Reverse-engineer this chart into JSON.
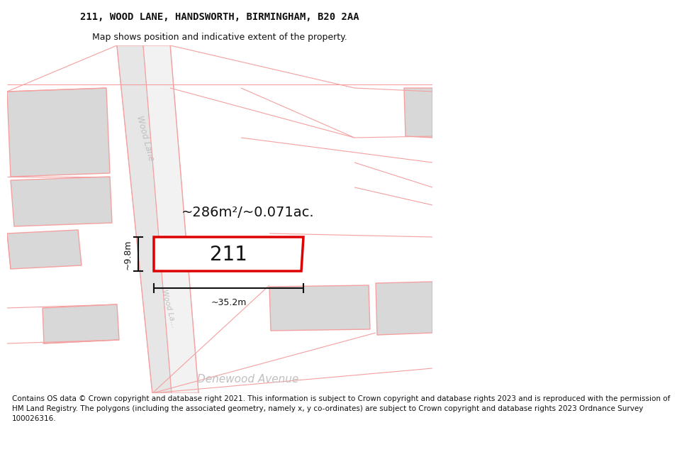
{
  "title_line1": "211, WOOD LANE, HANDSWORTH, BIRMINGHAM, B20 2AA",
  "title_line2": "Map shows position and indicative extent of the property.",
  "footer_text": "Contains OS data © Crown copyright and database right 2021. This information is subject to Crown copyright and database rights 2023 and is reproduced with the permission of\nHM Land Registry. The polygons (including the associated geometry, namely x, y co-ordinates) are subject to Crown copyright and database rights 2023 Ordnance Survey\n100026316.",
  "area_label": "~286m²/~0.071ac.",
  "property_number": "211",
  "width_label": "~35.2m",
  "height_label": "~9.8m",
  "street_wood_lane": "Wood Lane",
  "street_wood_lane2": "Wood La…",
  "street_denewood": "Denewood Avenue",
  "map_bg": "#ffffff",
  "road_fill": "#eeeeee",
  "block_fill": "#d8d8d8",
  "outline_color": "#f5a0a0",
  "highlight_color": "#dd0000",
  "dim_line_color": "#111111",
  "text_color": "#111111",
  "street_text_color": "#c0c0c0",
  "title_fontsize": 10,
  "subtitle_fontsize": 9,
  "footer_fontsize": 7.5,
  "area_fontsize": 14,
  "prop_num_fontsize": 20,
  "dim_fontsize": 9,
  "street_fontsize": 8.5
}
